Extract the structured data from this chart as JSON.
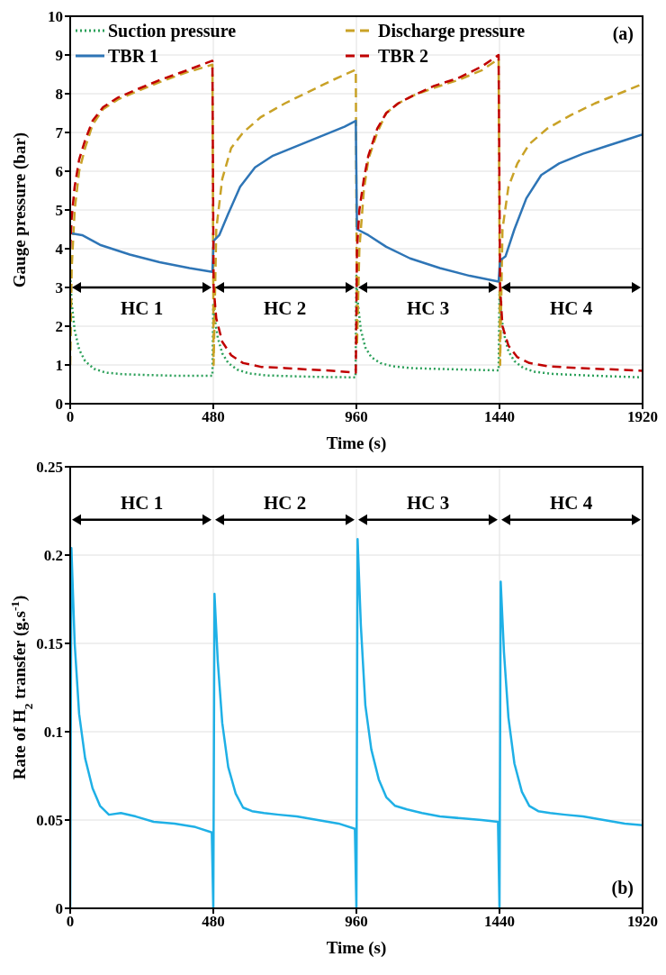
{
  "chart_data": [
    {
      "type": "line",
      "xlabel": "Time (s)",
      "ylabel": "Gauge pressure (bar)",
      "xlim": [
        0,
        1920
      ],
      "xticks": [
        0,
        480,
        960,
        1440,
        1920
      ],
      "ylim": [
        0,
        10
      ],
      "yticks": [
        0,
        1,
        2,
        3,
        4,
        5,
        6,
        7,
        8,
        9,
        10
      ],
      "grid": true,
      "legend": "top",
      "annotations": [
        "(a)",
        "HC 1",
        "HC 2",
        "HC 3",
        "HC 4"
      ],
      "series": [
        {
          "name": "Suction pressure",
          "color": "#2ca05a",
          "line_style": "dotted",
          "x": [
            0,
            5,
            15,
            30,
            50,
            80,
            120,
            180,
            260,
            360,
            477,
            480,
            485,
            495,
            510,
            530,
            560,
            600,
            660,
            740,
            840,
            957,
            960,
            965,
            975,
            990,
            1010,
            1040,
            1080,
            1140,
            1220,
            1320,
            1437,
            1440,
            1445,
            1455,
            1470,
            1490,
            1520,
            1560,
            1620,
            1700,
            1800,
            1920
          ],
          "values": [
            3.3,
            2.6,
            1.9,
            1.4,
            1.1,
            0.9,
            0.8,
            0.76,
            0.74,
            0.72,
            0.72,
            2.6,
            2.2,
            1.7,
            1.3,
            1.05,
            0.88,
            0.78,
            0.73,
            0.71,
            0.69,
            0.68,
            3.3,
            2.6,
            1.9,
            1.45,
            1.2,
            1.05,
            0.97,
            0.92,
            0.9,
            0.88,
            0.86,
            2.9,
            2.3,
            1.8,
            1.35,
            1.1,
            0.92,
            0.82,
            0.77,
            0.74,
            0.71,
            0.68
          ]
        },
        {
          "name": "Discharge pressure",
          "color": "#c9a227",
          "line_style": "dashed",
          "x": [
            0,
            5,
            15,
            30,
            50,
            75,
            110,
            160,
            220,
            300,
            390,
            477,
            481,
            490,
            510,
            540,
            580,
            640,
            720,
            800,
            880,
            958,
            962,
            970,
            985,
            1000,
            1030,
            1060,
            1100,
            1150,
            1220,
            1300,
            1380,
            1437,
            1442,
            1450,
            1470,
            1500,
            1540,
            1600,
            1680,
            1760,
            1840,
            1920
          ],
          "values": [
            1.0,
            3.5,
            5.0,
            6.0,
            6.6,
            7.2,
            7.6,
            7.85,
            8.05,
            8.3,
            8.55,
            8.75,
            1.0,
            4.5,
            5.8,
            6.6,
            7.0,
            7.4,
            7.75,
            8.05,
            8.35,
            8.62,
            1.5,
            4.0,
            5.5,
            6.3,
            7.0,
            7.5,
            7.75,
            7.95,
            8.15,
            8.35,
            8.6,
            8.9,
            1.0,
            4.5,
            5.6,
            6.2,
            6.7,
            7.1,
            7.45,
            7.75,
            8.0,
            8.25
          ]
        },
        {
          "name": "TBR 1",
          "color": "#2e75b6",
          "line_style": "solid",
          "x": [
            0,
            40,
            100,
            200,
            300,
            400,
            477,
            481,
            500,
            530,
            570,
            620,
            680,
            760,
            840,
            920,
            958,
            962,
            1000,
            1060,
            1140,
            1240,
            1340,
            1437,
            1442,
            1460,
            1490,
            1530,
            1580,
            1640,
            1720,
            1800,
            1880,
            1920
          ],
          "values": [
            4.4,
            4.35,
            4.1,
            3.85,
            3.65,
            3.5,
            3.4,
            4.2,
            4.35,
            4.9,
            5.6,
            6.1,
            6.4,
            6.65,
            6.9,
            7.15,
            7.3,
            4.5,
            4.35,
            4.05,
            3.75,
            3.5,
            3.3,
            3.15,
            3.7,
            3.8,
            4.5,
            5.3,
            5.9,
            6.2,
            6.45,
            6.65,
            6.85,
            6.95
          ]
        },
        {
          "name": "TBR 2",
          "color": "#c00000",
          "line_style": "dashed",
          "x": [
            0,
            5,
            15,
            30,
            50,
            75,
            110,
            160,
            220,
            300,
            390,
            477,
            481,
            490,
            510,
            540,
            580,
            640,
            720,
            800,
            880,
            958,
            962,
            970,
            985,
            1000,
            1030,
            1060,
            1100,
            1150,
            1220,
            1300,
            1380,
            1437,
            1442,
            1450,
            1470,
            1500,
            1540,
            1600,
            1680,
            1760,
            1840,
            1920
          ],
          "values": [
            4.0,
            4.8,
            5.6,
            6.3,
            6.8,
            7.3,
            7.65,
            7.9,
            8.1,
            8.35,
            8.6,
            8.85,
            3.0,
            2.2,
            1.6,
            1.25,
            1.05,
            0.95,
            0.92,
            0.88,
            0.85,
            0.8,
            4.0,
            5.0,
            5.8,
            6.4,
            7.1,
            7.5,
            7.75,
            7.95,
            8.2,
            8.4,
            8.7,
            9.0,
            3.0,
            2.0,
            1.5,
            1.2,
            1.05,
            0.97,
            0.93,
            0.9,
            0.88,
            0.85
          ]
        }
      ]
    },
    {
      "type": "line",
      "xlabel": "Time (s)",
      "ylabel": "Rate of H$_{2}$ transfer (g.s$^{-1}$)",
      "xlim": [
        0,
        1920
      ],
      "xticks": [
        0,
        480,
        960,
        1440,
        1920
      ],
      "ylim": [
        0,
        0.25
      ],
      "yticks": [
        0,
        0.05,
        0.1,
        0.15,
        0.2,
        0.25
      ],
      "grid": true,
      "annotations": [
        "(b)",
        "HC 1",
        "HC 2",
        "HC 3",
        "HC 4"
      ],
      "series": [
        {
          "color": "#1fb0e6",
          "line_style": "solid",
          "x": [
            0,
            4,
            15,
            30,
            50,
            75,
            100,
            130,
            170,
            220,
            280,
            350,
            420,
            475,
            480,
            484,
            495,
            510,
            530,
            555,
            580,
            610,
            650,
            700,
            760,
            830,
            900,
            955,
            960,
            964,
            975,
            990,
            1010,
            1035,
            1060,
            1090,
            1130,
            1180,
            1240,
            1310,
            1380,
            1435,
            1440,
            1444,
            1455,
            1470,
            1490,
            1515,
            1540,
            1570,
            1610,
            1660,
            1720,
            1790,
            1860,
            1920
          ],
          "values": [
            0,
            0.204,
            0.15,
            0.11,
            0.085,
            0.068,
            0.058,
            0.053,
            0.054,
            0.052,
            0.049,
            0.048,
            0.046,
            0.043,
            0,
            0.178,
            0.14,
            0.105,
            0.08,
            0.065,
            0.057,
            0.055,
            0.054,
            0.053,
            0.052,
            0.05,
            0.048,
            0.045,
            0,
            0.209,
            0.16,
            0.115,
            0.09,
            0.073,
            0.063,
            0.058,
            0.056,
            0.054,
            0.052,
            0.051,
            0.05,
            0.049,
            0,
            0.185,
            0.145,
            0.108,
            0.082,
            0.066,
            0.058,
            0.055,
            0.054,
            0.053,
            0.052,
            0.05,
            0.048,
            0.047
          ]
        }
      ]
    }
  ]
}
